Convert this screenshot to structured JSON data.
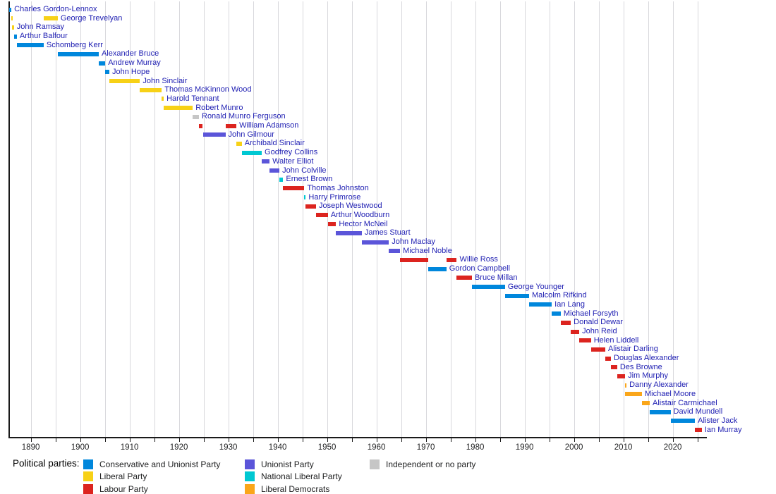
{
  "legend": {
    "heading": "Political parties:",
    "columns": [
      [
        "conservative",
        "liberal",
        "labour"
      ],
      [
        "unionist",
        "national_liberal",
        "libdem"
      ],
      [
        "independent"
      ]
    ]
  },
  "parties": {
    "conservative": {
      "label": "Conservative and Unionist Party",
      "color": "#0087DC"
    },
    "liberal": {
      "label": "Liberal Party",
      "color": "#F7D117"
    },
    "labour": {
      "label": "Labour Party",
      "color": "#DC241F"
    },
    "unionist": {
      "label": "Unionist Party",
      "color": "#5B55D9"
    },
    "national_liberal": {
      "label": "National Liberal Party",
      "color": "#00C8D2"
    },
    "libdem": {
      "label": "Liberal Democrats",
      "color": "#FAA61A"
    },
    "independent": {
      "label": "Independent or no party",
      "color": "#C6C6C6"
    }
  },
  "chart_data": {
    "type": "bar",
    "variant": "timeline-gantt",
    "title": "",
    "xlabel": "",
    "ylabel": "",
    "x_axis": {
      "min": 1885.6,
      "max": 2026.9,
      "tick_labels": [
        "1890",
        "1900",
        "1910",
        "1920",
        "1930",
        "1940",
        "1950",
        "1960",
        "1970",
        "1980",
        "1990",
        "2000",
        "2010",
        "2020"
      ],
      "tick_label_years": [
        1890,
        1900,
        1910,
        1920,
        1930,
        1940,
        1950,
        1960,
        1970,
        1980,
        1990,
        2000,
        2010,
        2020
      ],
      "gridline_step_years": 5,
      "grid": true
    },
    "people": [
      {
        "name": "Charles Gordon-Lennox",
        "party": "conservative",
        "terms": [
          [
            1885.63,
            1886.08
          ]
        ]
      },
      {
        "name": "George Trevelyan",
        "party": "liberal",
        "terms": [
          [
            1886.1,
            1886.26
          ],
          [
            1892.63,
            1895.47
          ]
        ]
      },
      {
        "name": "John Ramsay",
        "party": "liberal",
        "terms": [
          [
            1886.26,
            1886.59
          ]
        ]
      },
      {
        "name": "Arthur Balfour",
        "party": "conservative",
        "terms": [
          [
            1886.59,
            1887.19
          ]
        ]
      },
      {
        "name": "Schomberg Kerr",
        "party": "conservative",
        "terms": [
          [
            1887.19,
            1892.61
          ]
        ]
      },
      {
        "name": "Alexander Bruce",
        "party": "conservative",
        "terms": [
          [
            1895.49,
            1903.77
          ]
        ]
      },
      {
        "name": "Andrew Murray",
        "party": "conservative",
        "terms": [
          [
            1903.77,
            1905.09
          ]
        ]
      },
      {
        "name": "John Hope",
        "party": "conservative",
        "terms": [
          [
            1905.09,
            1905.92
          ]
        ]
      },
      {
        "name": "John Sinclair",
        "party": "liberal",
        "terms": [
          [
            1905.94,
            1912.12
          ]
        ]
      },
      {
        "name": "Thomas McKinnon Wood",
        "party": "liberal",
        "terms": [
          [
            1912.12,
            1916.52
          ]
        ]
      },
      {
        "name": "Harold Tennant",
        "party": "liberal",
        "terms": [
          [
            1916.52,
            1916.93
          ]
        ]
      },
      {
        "name": "Robert Munro",
        "party": "liberal",
        "terms": [
          [
            1916.94,
            1922.8
          ]
        ]
      },
      {
        "name": "Ronald Munro Ferguson",
        "party": "independent",
        "terms": [
          [
            1922.81,
            1924.06
          ]
        ]
      },
      {
        "name": "William Adamson",
        "party": "labour",
        "terms": [
          [
            1924.06,
            1924.84
          ],
          [
            1929.43,
            1931.64
          ]
        ]
      },
      {
        "name": "John Gilmour",
        "party": "unionist",
        "terms": [
          [
            1924.85,
            1929.42
          ]
        ]
      },
      {
        "name": "Archibald Sinclair",
        "party": "liberal",
        "terms": [
          [
            1931.65,
            1932.74
          ]
        ]
      },
      {
        "name": "Godfrey Collins",
        "party": "national_liberal",
        "terms": [
          [
            1932.74,
            1936.78
          ]
        ]
      },
      {
        "name": "Walter Elliot",
        "party": "unionist",
        "terms": [
          [
            1936.83,
            1938.37
          ]
        ]
      },
      {
        "name": "John Colville",
        "party": "unionist",
        "terms": [
          [
            1938.37,
            1940.37
          ]
        ]
      },
      {
        "name": "Ernest Brown",
        "party": "national_liberal",
        "terms": [
          [
            1940.37,
            1941.11
          ]
        ]
      },
      {
        "name": "Thomas Johnston",
        "party": "labour",
        "terms": [
          [
            1941.11,
            1945.39
          ]
        ]
      },
      {
        "name": "Harry Primrose",
        "party": "national_liberal",
        "terms": [
          [
            1945.4,
            1945.57
          ]
        ]
      },
      {
        "name": "Joseph Westwood",
        "party": "labour",
        "terms": [
          [
            1945.59,
            1947.77
          ]
        ]
      },
      {
        "name": "Arthur Woodburn",
        "party": "labour",
        "terms": [
          [
            1947.77,
            1950.16
          ]
        ]
      },
      {
        "name": "Hector McNeil",
        "party": "labour",
        "terms": [
          [
            1950.16,
            1951.82
          ]
        ]
      },
      {
        "name": "James Stuart",
        "party": "unionist",
        "terms": [
          [
            1951.83,
            1957.04
          ]
        ]
      },
      {
        "name": "John Maclay",
        "party": "unionist",
        "terms": [
          [
            1957.04,
            1962.53
          ]
        ]
      },
      {
        "name": "Michael Noble",
        "party": "unionist",
        "terms": [
          [
            1962.53,
            1964.79
          ]
        ]
      },
      {
        "name": "Willie Ross",
        "party": "labour",
        "terms": [
          [
            1964.8,
            1970.47
          ],
          [
            1974.18,
            1976.27
          ]
        ]
      },
      {
        "name": "Gordon Campbell",
        "party": "conservative",
        "terms": [
          [
            1970.47,
            1974.17
          ]
        ]
      },
      {
        "name": "Bruce Millan",
        "party": "labour",
        "terms": [
          [
            1976.27,
            1979.34
          ]
        ]
      },
      {
        "name": "George Younger",
        "party": "conservative",
        "terms": [
          [
            1979.34,
            1986.03
          ]
        ]
      },
      {
        "name": "Malcolm Rifkind",
        "party": "conservative",
        "terms": [
          [
            1986.03,
            1990.91
          ]
        ]
      },
      {
        "name": "Ian Lang",
        "party": "conservative",
        "terms": [
          [
            1990.91,
            1995.51
          ]
        ]
      },
      {
        "name": "Michael Forsyth",
        "party": "conservative",
        "terms": [
          [
            1995.51,
            1997.33
          ]
        ]
      },
      {
        "name": "Donald Dewar",
        "party": "labour",
        "terms": [
          [
            1997.33,
            1999.37
          ]
        ]
      },
      {
        "name": "John Reid",
        "party": "labour",
        "terms": [
          [
            1999.37,
            2001.07
          ]
        ]
      },
      {
        "name": "Helen Liddell",
        "party": "labour",
        "terms": [
          [
            2001.07,
            2003.45
          ]
        ]
      },
      {
        "name": "Alistair Darling",
        "party": "labour",
        "terms": [
          [
            2003.45,
            2006.34
          ]
        ]
      },
      {
        "name": "Douglas Alexander",
        "party": "labour",
        "terms": [
          [
            2006.34,
            2007.49
          ]
        ]
      },
      {
        "name": "Des Browne",
        "party": "labour",
        "terms": [
          [
            2007.49,
            2008.75
          ]
        ]
      },
      {
        "name": "Jim Murphy",
        "party": "labour",
        "terms": [
          [
            2008.75,
            2010.36
          ]
        ]
      },
      {
        "name": "Danny Alexander",
        "party": "libdem",
        "terms": [
          [
            2010.36,
            2010.41
          ]
        ]
      },
      {
        "name": "Michael Moore",
        "party": "libdem",
        "terms": [
          [
            2010.41,
            2013.77
          ]
        ]
      },
      {
        "name": "Alistair Carmichael",
        "party": "libdem",
        "terms": [
          [
            2013.77,
            2015.35
          ]
        ]
      },
      {
        "name": "David Mundell",
        "party": "conservative",
        "terms": [
          [
            2015.36,
            2019.56
          ]
        ]
      },
      {
        "name": "Alister Jack",
        "party": "conservative",
        "terms": [
          [
            2019.56,
            2024.51
          ]
        ]
      },
      {
        "name": "Ian Murray",
        "party": "labour",
        "terms": [
          [
            2024.51,
            2025.9
          ]
        ]
      }
    ]
  }
}
